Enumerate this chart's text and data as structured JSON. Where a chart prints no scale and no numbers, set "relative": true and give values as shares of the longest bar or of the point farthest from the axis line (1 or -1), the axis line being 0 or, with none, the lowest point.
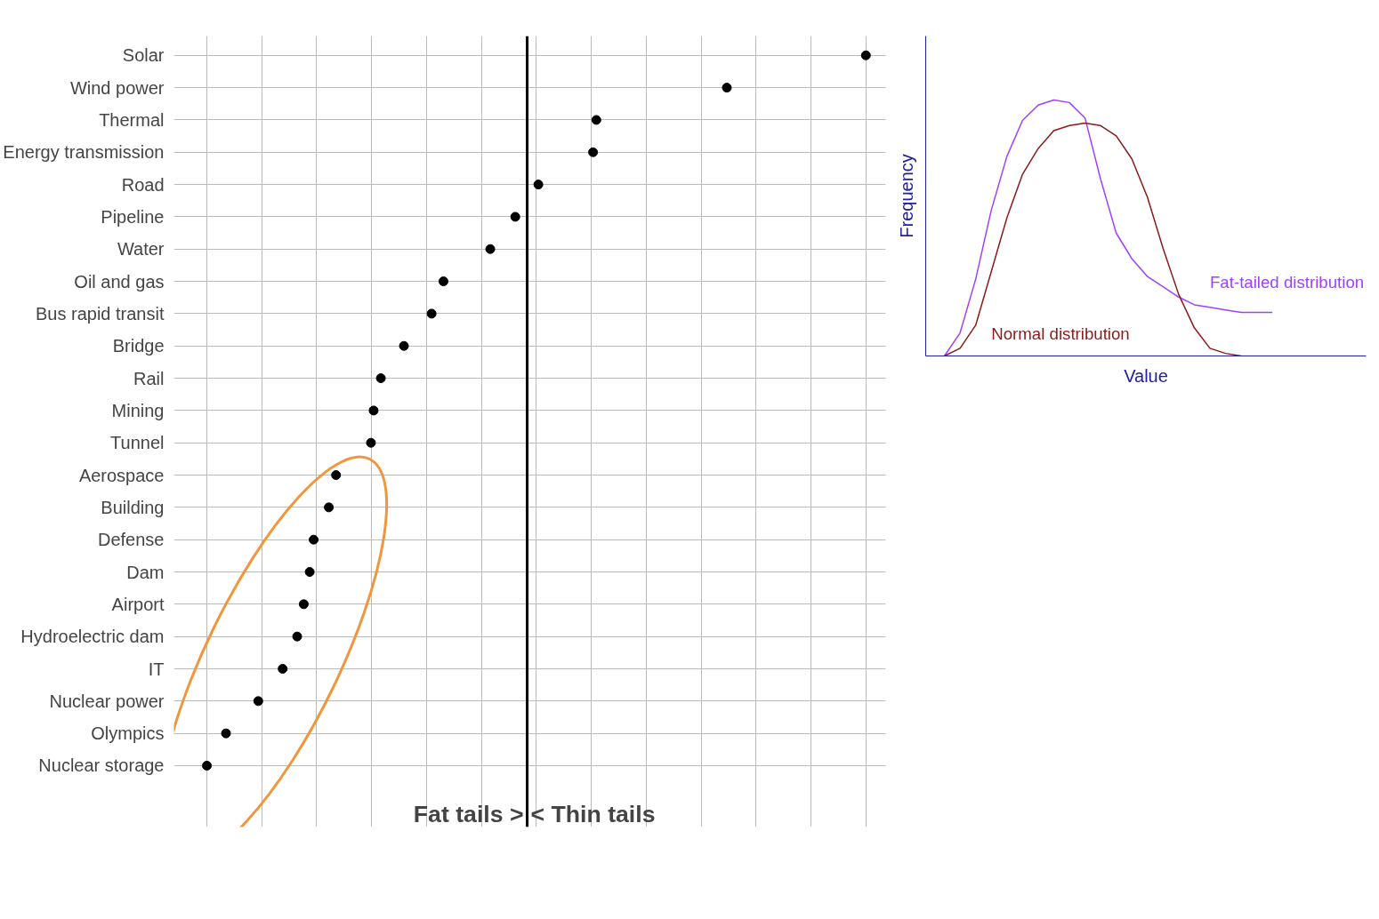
{
  "chart_data": [
    {
      "type": "scatter",
      "orientation": "horizontal",
      "relative": true,
      "grid": true,
      "marker": "circle",
      "tick_labels": "y",
      "categories": [
        "Solar",
        "Wind power",
        "Thermal",
        "Energy transmission",
        "Road",
        "Pipeline",
        "Water",
        "Oil and gas",
        "Bus rapid transit",
        "Bridge",
        "Rail",
        "Mining",
        "Tunnel",
        "Aerospace",
        "Building",
        "Defense",
        "Dam",
        "Airport",
        "Hydroelectric dam",
        "IT",
        "Nuclear power",
        "Olympics",
        "Nuclear storage"
      ],
      "series": [
        {
          "color": "#000000",
          "values": [
            1,
            0.789,
            0.591,
            0.586,
            0.503,
            0.468,
            0.43,
            0.359,
            0.341,
            0.299,
            0.264,
            0.253,
            0.249,
            0.196,
            0.185,
            0.162,
            0.156,
            0.147,
            0.137,
            0.115,
            0.078,
            0.029,
            0
          ]
        }
      ],
      "ref_lines": [
        {
          "axis": "x",
          "value": 0.486,
          "color": "#000000"
        }
      ],
      "annotations": [
        "Fat tails >",
        "< Thin tails"
      ]
    },
    {
      "type": "line",
      "relative": true,
      "grid": false,
      "line_style": "solid",
      "xlabel": "Value",
      "ylabel": "Frequency",
      "categories": [
        null,
        null,
        null,
        null,
        null,
        null,
        null,
        null,
        null,
        null,
        null,
        null,
        null,
        null,
        null,
        null,
        null,
        null,
        null,
        null,
        null,
        null
      ],
      "series": [
        {
          "name": "Fat-tailed distribution",
          "color": "#a040ff",
          "values": [
            0,
            0.09,
            0.3,
            0.57,
            0.78,
            0.92,
            0.98,
            1,
            0.99,
            0.93,
            0.69,
            0.48,
            0.38,
            0.31,
            0.27,
            0.23,
            0.2,
            0.19,
            0.18,
            0.17,
            0.17,
            0.17
          ]
        },
        {
          "name": "Normal distribution",
          "color": "#8b1a1a",
          "values": [
            0,
            0.03,
            0.12,
            0.33,
            0.54,
            0.71,
            0.81,
            0.88,
            0.9,
            0.91,
            0.9,
            0.86,
            0.77,
            0.62,
            0.42,
            0.24,
            0.11,
            0.03,
            0.01,
            0,
            null,
            null
          ]
        }
      ]
    }
  ]
}
